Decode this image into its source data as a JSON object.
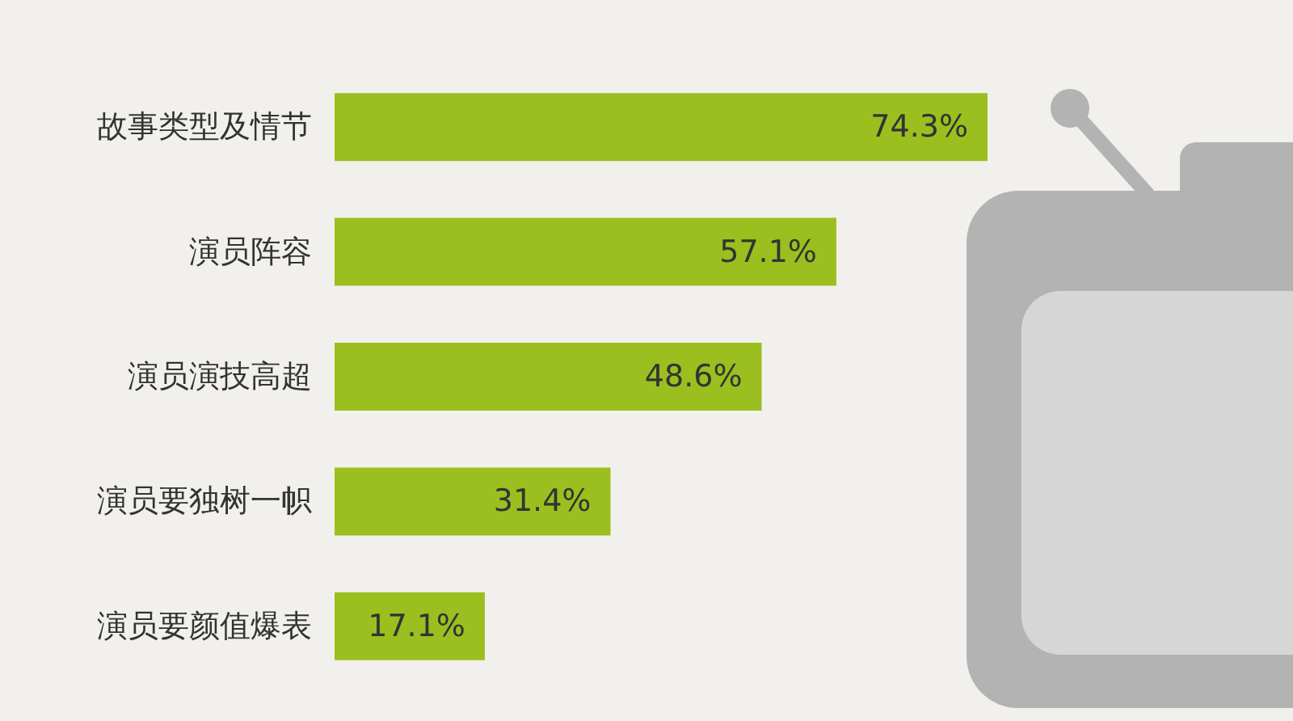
{
  "chart_data": {
    "type": "bar",
    "orientation": "horizontal",
    "categories": [
      "故事类型及情节",
      "演员阵容",
      "演员演技高超",
      "演员要独树一帜",
      "演员要颜值爆表"
    ],
    "values": [
      74.3,
      57.1,
      48.6,
      31.4,
      17.1
    ],
    "color": "#9bbf1e",
    "value_labels": [
      "74.3%",
      "57.1%",
      "48.6%",
      "31.4%",
      "17.1%"
    ]
  }
}
